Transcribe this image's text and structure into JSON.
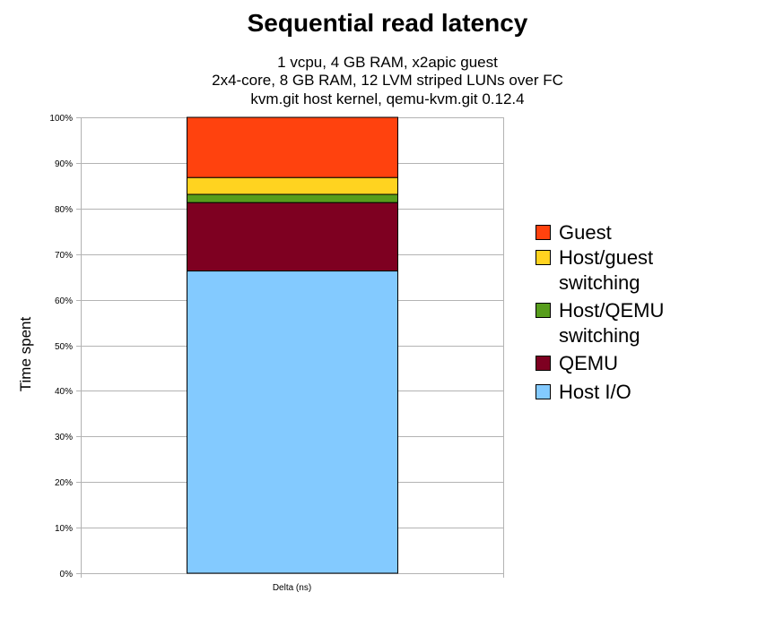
{
  "chart_data": {
    "type": "bar",
    "stacked": true,
    "title": "Sequential read latency",
    "subtitle_lines": [
      "1 vcpu, 4 GB RAM, x2apic guest",
      "2x4-core, 8 GB RAM, 12 LVM striped LUNs over FC",
      "kvm.git host kernel, qemu-kvm.git 0.12.4"
    ],
    "xlabel": "",
    "ylabel": "Time spent",
    "categories": [
      "Delta (ns)"
    ],
    "ylim": [
      0,
      100
    ],
    "yticks": [
      "0%",
      "10%",
      "20%",
      "30%",
      "40%",
      "50%",
      "60%",
      "70%",
      "80%",
      "90%",
      "100%"
    ],
    "grid": true,
    "legend_placement": "right",
    "series": [
      {
        "name": "Host I/O",
        "values": [
          66.3
        ],
        "color": "#83caff"
      },
      {
        "name": "QEMU",
        "values": [
          15.0
        ],
        "color": "#7e0021"
      },
      {
        "name": "Host/QEMU switching",
        "values": [
          1.8
        ],
        "color": "#579d1c"
      },
      {
        "name": "Host/guest switching",
        "values": [
          3.7
        ],
        "color": "#ffd320"
      },
      {
        "name": "Guest",
        "values": [
          13.2
        ],
        "color": "#ff420e"
      }
    ]
  }
}
